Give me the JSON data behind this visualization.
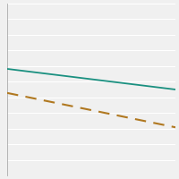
{
  "solid_line": {
    "x": [
      0,
      1
    ],
    "y": [
      0.62,
      0.5
    ],
    "color": "#1a9080",
    "linewidth": 1.3
  },
  "dashed_line": {
    "x": [
      0,
      1
    ],
    "y": [
      0.48,
      0.28
    ],
    "color": "#b07820",
    "linewidth": 1.5,
    "dashes": [
      6,
      4
    ]
  },
  "background_color": "#f0f0f0",
  "grid_color": "#ffffff",
  "spine_color": "#aaaaaa",
  "ylim": [
    0,
    1
  ],
  "xlim": [
    0,
    1
  ],
  "num_gridlines": 11
}
